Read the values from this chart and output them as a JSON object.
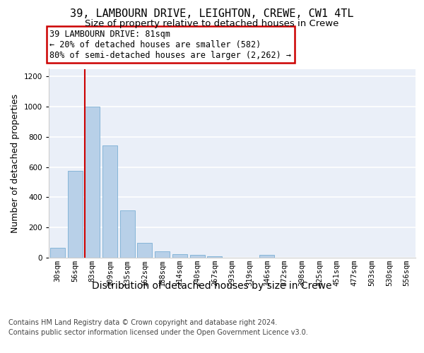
{
  "title": "39, LAMBOURN DRIVE, LEIGHTON, CREWE, CW1 4TL",
  "subtitle": "Size of property relative to detached houses in Crewe",
  "xlabel": "Distribution of detached houses by size in Crewe",
  "ylabel": "Number of detached properties",
  "categories": [
    "30sqm",
    "56sqm",
    "83sqm",
    "109sqm",
    "135sqm",
    "162sqm",
    "188sqm",
    "214sqm",
    "240sqm",
    "267sqm",
    "293sqm",
    "319sqm",
    "346sqm",
    "372sqm",
    "398sqm",
    "425sqm",
    "451sqm",
    "477sqm",
    "503sqm",
    "530sqm",
    "556sqm"
  ],
  "values": [
    65,
    575,
    1000,
    745,
    315,
    100,
    40,
    25,
    20,
    10,
    0,
    0,
    20,
    0,
    0,
    0,
    0,
    0,
    0,
    0,
    0
  ],
  "bar_color": "#b8d0e8",
  "bar_edge_color": "#7aaed4",
  "vline_index": 2,
  "vline_color": "#cc0000",
  "annotation_line1": "39 LAMBOURN DRIVE: 81sqm",
  "annotation_line2": "← 20% of detached houses are smaller (582)",
  "annotation_line3": "80% of semi-detached houses are larger (2,262) →",
  "annotation_box_facecolor": "#ffffff",
  "annotation_box_edgecolor": "#cc0000",
  "ylim": [
    0,
    1250
  ],
  "yticks": [
    0,
    200,
    400,
    600,
    800,
    1000,
    1200
  ],
  "bg_color": "#eaeff8",
  "grid_color": "#ffffff",
  "footer_line1": "Contains HM Land Registry data © Crown copyright and database right 2024.",
  "footer_line2": "Contains public sector information licensed under the Open Government Licence v3.0.",
  "title_fontsize": 11,
  "subtitle_fontsize": 9.5,
  "xlabel_fontsize": 10,
  "ylabel_fontsize": 9,
  "tick_fontsize": 7.5,
  "annotation_fontsize": 8.5,
  "footer_fontsize": 7
}
